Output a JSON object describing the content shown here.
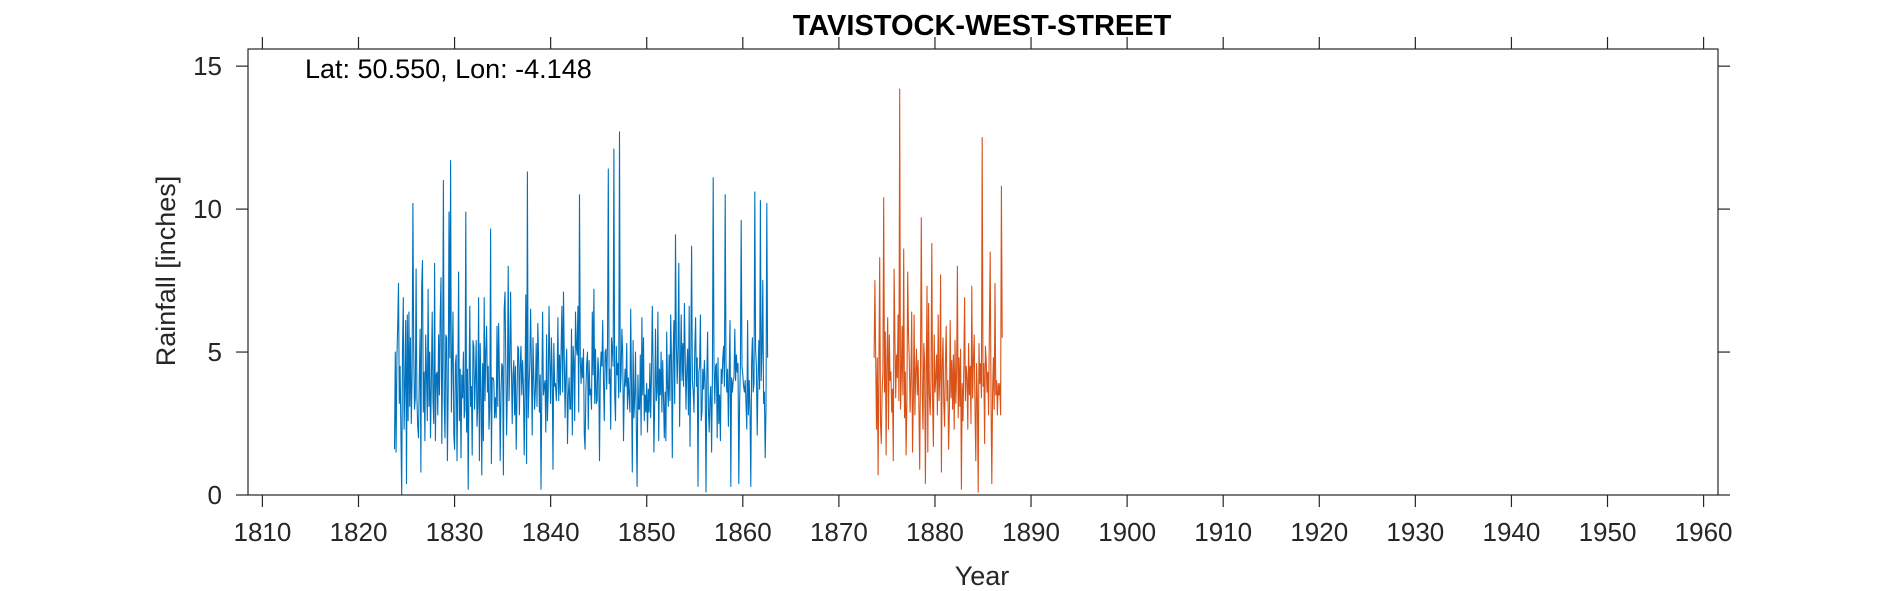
{
  "chart_data": {
    "type": "line",
    "title": "TAVISTOCK-WEST-STREET",
    "annotation": "Lat: 50.550, Lon: -4.148",
    "xlabel": "Year",
    "ylabel": "Rainfall [inches]",
    "xlim": [
      1808.5,
      1961.5
    ],
    "ylim": [
      0,
      15.6
    ],
    "xticks": [
      1810,
      1820,
      1830,
      1840,
      1850,
      1860,
      1870,
      1880,
      1890,
      1900,
      1910,
      1920,
      1930,
      1940,
      1950,
      1960
    ],
    "yticks": [
      0,
      5,
      10,
      15
    ],
    "grid": false,
    "series": [
      {
        "color": "#0072BD",
        "x_start": 1823.75,
        "x_step": 0.0833333,
        "values": [
          1.6,
          5.0,
          1.5,
          4.8,
          5.9,
          7.4,
          3.2,
          4.5,
          2.2,
          0.0,
          5.1,
          6.9,
          2.3,
          3.8,
          6.1,
          0.4,
          6.3,
          2.6,
          6.4,
          3.1,
          5.5,
          2.5,
          4.2,
          10.2,
          5.1,
          3.0,
          3.4,
          7.9,
          3.4,
          2.4,
          2.0,
          4.1,
          5.8,
          0.8,
          7.3,
          8.2,
          2.9,
          4.3,
          1.9,
          5.6,
          4.2,
          2.6,
          7.2,
          3.1,
          5.0,
          2.0,
          3.8,
          6.4,
          3.3,
          2.5,
          8.1,
          1.9,
          4.2,
          4.3,
          2.8,
          5.6,
          3.5,
          6.3,
          7.6,
          1.8,
          4.6,
          11.0,
          3.3,
          2.0,
          5.6,
          5.5,
          1.2,
          3.7,
          9.9,
          4.8,
          11.7,
          2.9,
          4.6,
          6.4,
          2.1,
          1.6,
          4.6,
          4.9,
          1.2,
          3.7,
          7.8,
          2.6,
          4.4,
          1.3,
          4.2,
          3.4,
          5.0,
          2.7,
          3.0,
          9.9,
          2.2,
          4.4,
          0.2,
          3.8,
          6.6,
          3.1,
          3.8,
          1.4,
          5.4,
          5.2,
          3.0,
          4.1,
          5.4,
          2.4,
          3.1,
          6.9,
          1.2,
          5.3,
          3.6,
          0.7,
          4.6,
          1.9,
          6.9,
          3.3,
          5.0,
          5.9,
          3.6,
          4.5,
          2.3,
          3.1,
          9.3,
          1.1,
          4.1,
          4.1,
          4.0,
          2.7,
          3.4,
          2.7,
          5.9,
          3.1,
          6.0,
          4.3,
          1.2,
          3.5,
          4.6,
          4.5,
          0.7,
          6.5,
          7.1,
          4.6,
          2.1,
          3.7,
          8.0,
          3.3,
          4.6,
          7.1,
          4.5,
          2.5,
          4.2,
          4.7,
          2.8,
          4.5,
          1.6,
          3.4,
          5.2,
          5.1,
          2.8,
          4.5,
          5.2,
          3.5,
          4.7,
          3.8,
          1.4,
          3.6,
          7.0,
          1.1,
          11.3,
          2.7,
          3.8,
          4.6,
          6.5,
          4.5,
          2.1,
          5.5,
          4.1,
          3.0,
          3.7,
          5.3,
          3.1,
          6.0,
          4.8,
          2.9,
          4.2,
          0.2,
          3.6,
          6.4,
          3.5,
          3.8,
          4.0,
          2.2,
          5.6,
          2.6,
          3.6,
          6.6,
          4.6,
          3.2,
          5.5,
          4.2,
          0.9,
          5.3,
          3.8,
          3.9,
          3.3,
          4.0,
          6.2,
          3.3,
          4.9,
          3.5,
          5.1,
          6.6,
          3.6,
          7.1,
          4.7,
          2.7,
          4.4,
          5.1,
          1.8,
          3.5,
          4.1,
          3.0,
          3.0,
          5.8,
          2.1,
          5.2,
          4.7,
          2.6,
          6.4,
          5.2,
          4.9,
          6.6,
          2.9,
          10.5,
          4.7,
          3.9,
          4.8,
          4.1,
          5.1,
          2.1,
          1.6,
          3.7,
          4.6,
          5.0,
          2.3,
          4.7,
          3.5,
          3.7,
          3.0,
          6.4,
          4.2,
          7.2,
          3.2,
          5.1,
          3.2,
          3.3,
          4.8,
          4.4,
          1.2,
          4.2,
          5.0,
          4.5,
          6.1,
          3.9,
          2.6,
          5.0,
          5.1,
          3.7,
          5.3,
          11.4,
          3.9,
          4.4,
          2.3,
          5.5,
          5.1,
          4.5,
          12.1,
          3.5,
          2.6,
          5.2,
          4.2,
          4.6,
          3.4,
          12.7,
          3.6,
          4.2,
          5.8,
          4.9,
          1.9,
          3.7,
          4.4,
          3.8,
          5.3,
          3.0,
          4.1,
          3.5,
          2.9,
          6.5,
          3.8,
          0.8,
          5.4,
          2.7,
          3.4,
          5.0,
          2.4,
          0.3,
          4.2,
          3.0,
          3.0,
          4.9,
          2.1,
          6.2,
          3.5,
          5.5,
          2.6,
          3.5,
          2.9,
          3.9,
          2.2,
          3.7,
          2.9,
          4.6,
          2.7,
          4.3,
          6.6,
          4.5,
          1.5,
          3.2,
          5.8,
          3.3,
          3.6,
          6.4,
          1.9,
          4.4,
          3.5,
          5.0,
          2.9,
          4.7,
          3.4,
          2.0,
          3.6,
          1.9,
          5.7,
          3.8,
          3.1,
          4.9,
          3.3,
          6.3,
          4.7,
          1.3,
          4.8,
          6.1,
          3.2,
          9.1,
          5.4,
          3.9,
          5.1,
          8.1,
          2.4,
          4.5,
          6.3,
          4.0,
          5.3,
          3.8,
          6.7,
          4.9,
          3.0,
          4.4,
          5.1,
          2.8,
          6.6,
          1.7,
          4.9,
          8.7,
          4.0,
          3.6,
          2.9,
          5.1,
          6.2,
          3.8,
          4.8,
          0.3,
          4.3,
          4.5,
          6.3,
          2.6,
          2.9,
          4.4,
          3.7,
          4.7,
          3.8,
          0.1,
          4.1,
          5.7,
          3.0,
          2.2,
          3.4,
          3.8,
          1.5,
          4.1,
          11.1,
          4.6,
          3.2,
          4.5,
          4.6,
          2.0,
          4.8,
          2.5,
          3.5,
          1.9,
          4.4,
          3.9,
          4.8,
          5.2,
          3.8,
          10.5,
          4.6,
          3.6,
          4.4,
          2.4,
          4.2,
          6.1,
          0.3,
          4.1,
          3.6,
          4.0,
          4.1,
          5.8,
          4.0,
          4.9,
          4.3,
          4.6,
          0.4,
          3.2,
          4.5,
          9.6,
          4.5,
          4.2,
          3.8,
          3.6,
          4.0,
          3.2,
          2.3,
          6.1,
          2.8,
          4.0,
          3.0,
          0.3,
          4.6,
          5.5,
          3.6,
          3.9,
          10.6,
          5.1,
          4.5,
          2.1,
          4.0,
          5.4,
          3.7,
          10.3,
          4.0,
          5.0,
          7.5,
          3.2,
          3.6,
          1.3,
          3.0,
          10.2,
          4.8
        ]
      },
      {
        "color": "#D95319",
        "x_start": 1873.6667,
        "x_step": 0.0833333,
        "values": [
          4.8,
          7.5,
          4.7,
          2.3,
          4.8,
          0.7,
          4.5,
          8.3,
          2.5,
          1.8,
          3.6,
          4.3,
          10.4,
          3.6,
          5.7,
          1.4,
          4.7,
          6.2,
          2.3,
          5.6,
          4.0,
          4.3,
          2.9,
          3.7,
          1.2,
          7.9,
          5.5,
          3.4,
          4.9,
          4.1,
          6.3,
          3.3,
          14.2,
          3.0,
          4.1,
          5.9,
          3.5,
          8.6,
          2.7,
          4.3,
          1.4,
          3.3,
          7.8,
          5.6,
          4.7,
          2.9,
          4.1,
          6.4,
          1.5,
          3.2,
          6.3,
          2.8,
          4.3,
          5.1,
          3.5,
          4.7,
          3.1,
          0.9,
          4.5,
          9.7,
          3.6,
          2.3,
          5.3,
          4.7,
          0.4,
          4.1,
          7.3,
          1.5,
          6.7,
          3.5,
          2.8,
          4.1,
          8.8,
          3.2,
          1.7,
          5.6,
          3.6,
          4.1,
          4.9,
          2.8,
          6.3,
          3.3,
          4.1,
          7.7,
          0.8,
          4.5,
          5.5,
          3.2,
          2.4,
          4.6,
          5.9,
          3.3,
          4.0,
          1.6,
          2.9,
          6.1,
          3.4,
          4.7,
          3.0,
          4.9,
          2.3,
          5.4,
          3.2,
          4.2,
          8.0,
          2.7,
          4.8,
          3.1,
          5.1,
          0.2,
          3.9,
          2.6,
          4.4,
          6.9,
          3.3,
          4.5,
          4.1,
          2.3,
          5.3,
          3.5,
          4.5,
          2.5,
          7.3,
          3.4,
          4.7,
          5.6,
          3.0,
          1.2,
          4.6,
          3.3,
          0.1,
          5.3,
          3.9,
          4.6,
          3.4,
          12.5,
          3.8,
          4.6,
          1.8,
          5.2,
          4.7,
          3.6,
          4.3,
          2.8,
          5.9,
          8.5,
          3.4,
          0.4,
          3.6,
          4.8,
          3.0,
          7.4,
          3.5,
          4.0,
          2.8,
          3.9,
          3.5,
          3.9,
          2.8,
          10.8,
          5.5
        ]
      }
    ]
  }
}
